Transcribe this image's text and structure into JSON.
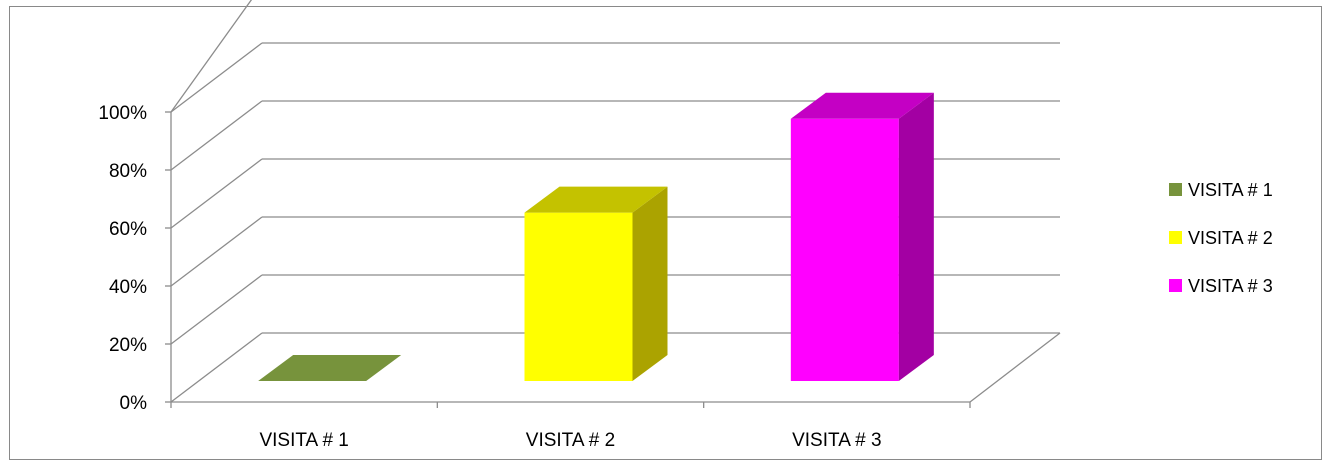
{
  "chart_data": {
    "type": "bar",
    "title": "",
    "xlabel": "",
    "ylabel": "",
    "categories": [
      "VISITA # 1",
      "VISITA # 2",
      "VISITA # 3"
    ],
    "values": [
      0,
      0.61,
      0.95
    ],
    "y_ticks": [
      "0%",
      "20%",
      "40%",
      "60%",
      "80%",
      "100%"
    ],
    "ylim": [
      0,
      1
    ],
    "grid": true,
    "three_d": true,
    "legend_position": "right",
    "legend": [
      "VISITA # 1",
      "VISITA # 2",
      "VISITA # 3"
    ],
    "colors": {
      "front": [
        "#77933c",
        "#ffff00",
        "#ff00ff"
      ],
      "side": [
        "#5f7a2e",
        "#aba300",
        "#a300a3"
      ],
      "top": [
        "#77933c",
        "#c4c200",
        "#c400c4"
      ]
    }
  }
}
